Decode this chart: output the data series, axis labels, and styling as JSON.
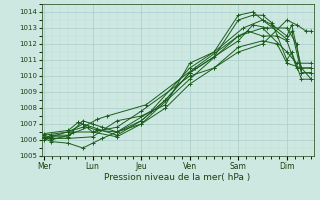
{
  "xlabel": "Pression niveau de la mer( hPa )",
  "bg_color": "#cce8e0",
  "grid_major_color": "#aacccc",
  "grid_minor_color": "#c0ddd8",
  "line_color": "#1a5c1a",
  "ylim": [
    1005,
    1014.5
  ],
  "xlim": [
    -0.05,
    5.55
  ],
  "day_labels": [
    "Mer",
    "Lun",
    "Jeu",
    "Ven",
    "Sam",
    "Dim"
  ],
  "day_positions": [
    0,
    1,
    2,
    3,
    4,
    5
  ],
  "yticks": [
    1005,
    1006,
    1007,
    1008,
    1009,
    1010,
    1011,
    1012,
    1013,
    1014
  ],
  "lines": [
    [
      0.0,
      1006.2,
      0.15,
      1006.1,
      0.5,
      1006.1,
      1.0,
      1006.2,
      1.5,
      1007.2,
      2.0,
      1007.5,
      2.5,
      1008.2,
      3.0,
      1010.8,
      3.5,
      1011.5,
      4.0,
      1013.8,
      4.3,
      1014.0,
      4.5,
      1013.5,
      4.7,
      1013.2,
      5.0,
      1012.5,
      5.1,
      1013.2,
      5.3,
      1010.5,
      5.5,
      1010.5
    ],
    [
      0.0,
      1006.2,
      0.15,
      1006.0,
      0.5,
      1006.3,
      0.8,
      1007.2,
      1.0,
      1007.0,
      1.2,
      1006.8,
      1.5,
      1006.5,
      2.0,
      1007.2,
      2.5,
      1008.5,
      3.0,
      1010.2,
      3.5,
      1011.2,
      4.0,
      1013.5,
      4.3,
      1013.8,
      4.5,
      1013.8,
      4.7,
      1013.3,
      5.0,
      1011.0,
      5.1,
      1011.5,
      5.3,
      1009.8,
      5.5,
      1009.8
    ],
    [
      0.0,
      1006.1,
      0.15,
      1006.3,
      0.5,
      1006.3,
      0.9,
      1006.8,
      1.1,
      1006.6,
      1.5,
      1006.5,
      2.2,
      1007.8,
      3.0,
      1010.5,
      3.5,
      1011.5,
      4.1,
      1013.0,
      4.5,
      1013.5,
      5.0,
      1012.3,
      5.1,
      1012.8,
      5.3,
      1010.2,
      5.5,
      1010.2
    ],
    [
      0.0,
      1006.0,
      0.15,
      1006.2,
      0.8,
      1006.8,
      1.1,
      1007.3,
      1.3,
      1007.5,
      2.1,
      1008.2,
      3.1,
      1010.5,
      4.0,
      1012.5,
      4.2,
      1012.8,
      4.5,
      1012.5,
      4.8,
      1012.5,
      5.0,
      1012.2,
      5.2,
      1010.5,
      5.5,
      1010.5
    ],
    [
      0.0,
      1006.1,
      0.15,
      1005.9,
      0.5,
      1005.8,
      0.8,
      1005.5,
      1.0,
      1005.8,
      1.2,
      1006.1,
      1.5,
      1006.5,
      2.0,
      1007.0,
      2.5,
      1008.0,
      3.0,
      1009.5,
      3.5,
      1010.5,
      4.0,
      1011.8,
      4.5,
      1012.2,
      4.8,
      1012.0,
      5.0,
      1010.8,
      5.3,
      1010.5,
      5.5,
      1009.8
    ],
    [
      0.0,
      1006.3,
      0.5,
      1006.5,
      0.8,
      1007.0,
      1.0,
      1006.5,
      1.5,
      1006.2,
      2.0,
      1007.0,
      3.0,
      1009.8,
      4.0,
      1012.5,
      4.5,
      1013.0,
      5.0,
      1011.5,
      5.2,
      1010.8,
      5.5,
      1010.8
    ],
    [
      0.0,
      1006.4,
      0.5,
      1006.6,
      0.7,
      1007.1,
      1.1,
      1006.7,
      1.5,
      1006.3,
      2.0,
      1007.2,
      2.5,
      1008.5,
      3.0,
      1010.2,
      4.0,
      1012.2,
      4.3,
      1013.2,
      4.6,
      1013.0,
      5.0,
      1013.0,
      5.2,
      1012.0,
      5.3,
      1010.2,
      5.5,
      1010.2
    ],
    [
      0.0,
      1006.2,
      0.5,
      1006.2,
      0.6,
      1006.5,
      1.0,
      1006.5,
      1.5,
      1006.8,
      2.0,
      1007.8,
      3.0,
      1010.0,
      3.5,
      1010.5,
      4.0,
      1011.5,
      4.5,
      1012.0,
      5.0,
      1013.5,
      5.2,
      1013.2,
      5.4,
      1012.8,
      5.5,
      1012.8
    ]
  ]
}
